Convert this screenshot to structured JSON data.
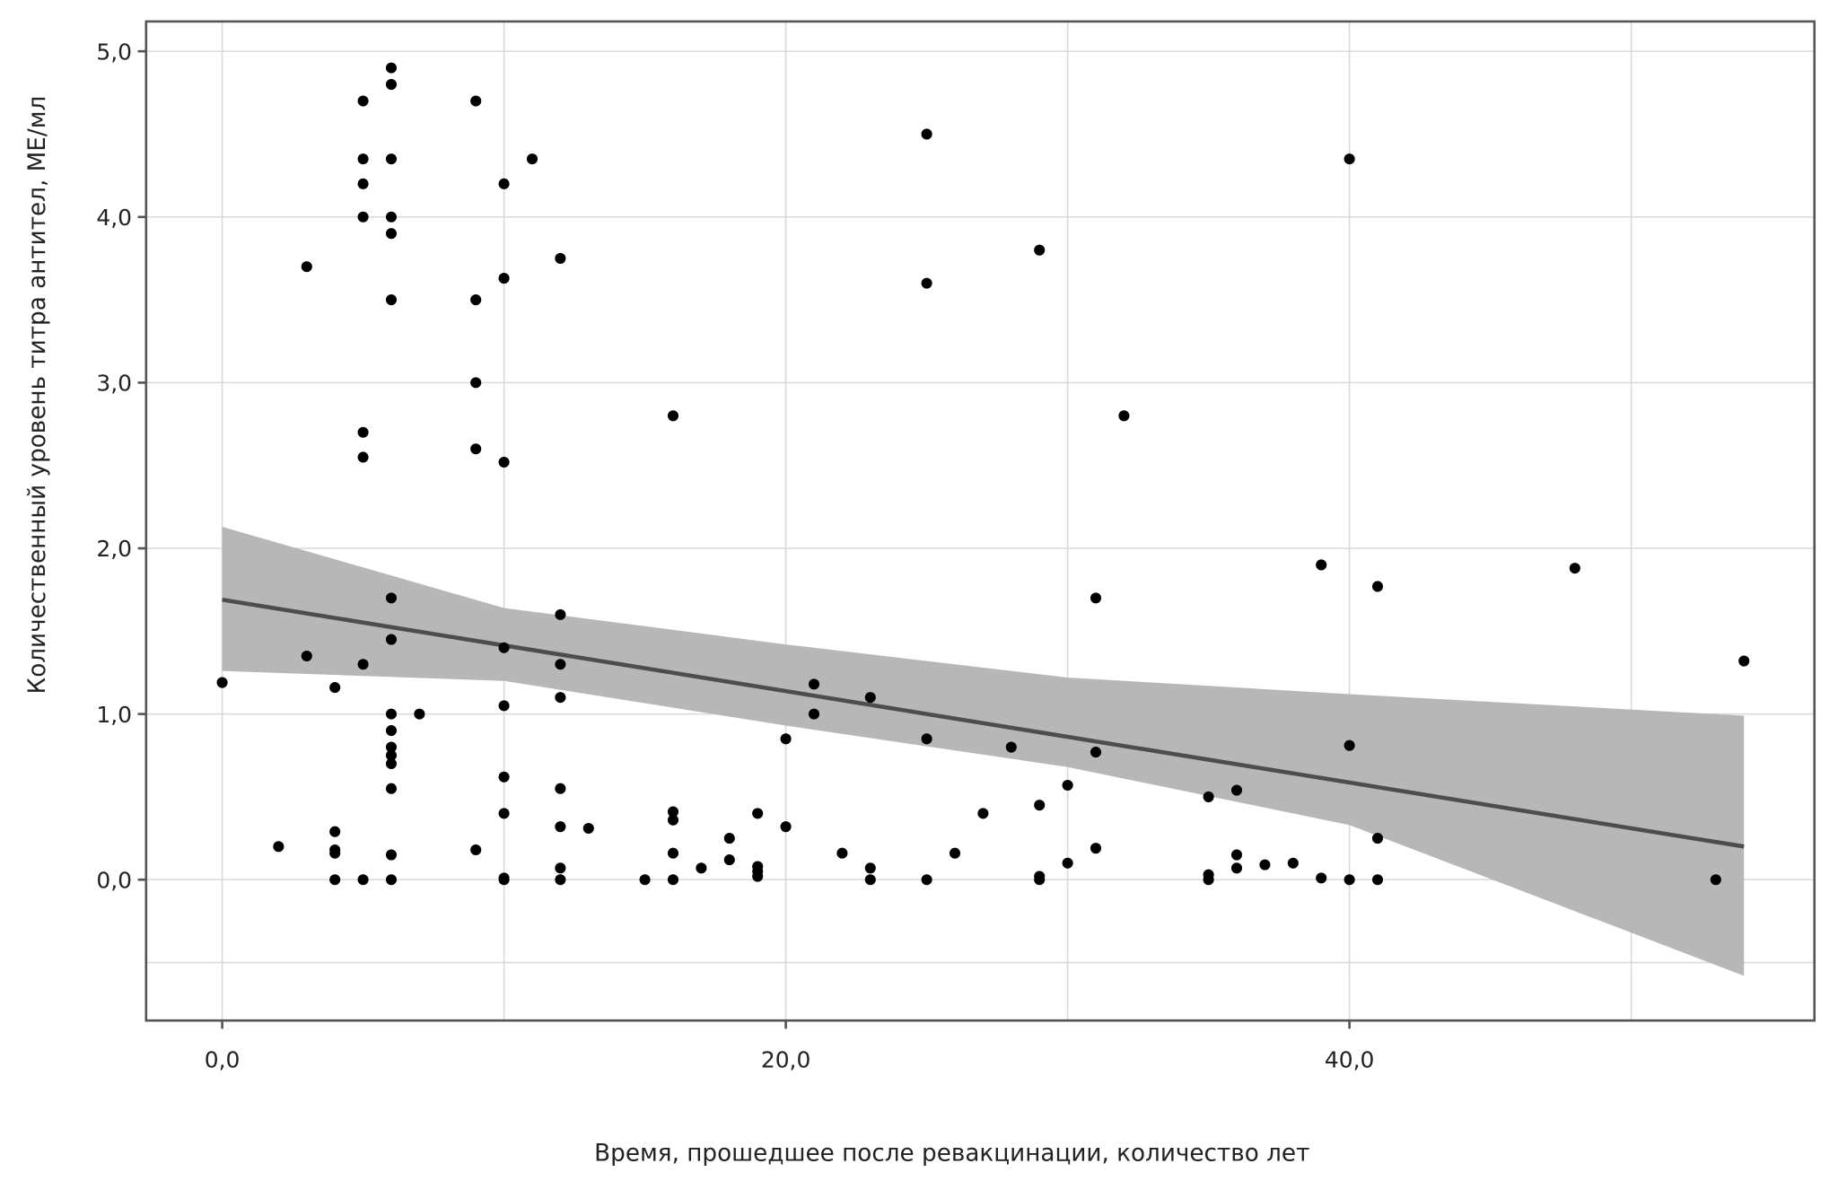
{
  "chart_data": {
    "type": "scatter",
    "title": "",
    "xlabel": "Время, прошедшее после ревакцинации, количество лет",
    "ylabel": "Количественный уровень титра антител, МЕ/мл",
    "xlim": [
      -2.7,
      56.5
    ],
    "ylim": [
      -0.85,
      5.18
    ],
    "x_ticks": [
      0,
      20,
      40
    ],
    "x_tick_labels": [
      "0,0",
      "20,0",
      "40,0"
    ],
    "y_ticks": [
      0,
      1,
      2,
      3,
      4,
      5
    ],
    "y_tick_labels": [
      "0,0",
      "1,0",
      "2,0",
      "3,0",
      "4,0",
      "5,0"
    ],
    "x_grid": [
      0,
      10,
      20,
      30,
      40,
      50
    ],
    "y_grid": [
      -0.5,
      0,
      1,
      2,
      3,
      4,
      5
    ],
    "grid": true,
    "points": [
      [
        0,
        1.19
      ],
      [
        2,
        0.2
      ],
      [
        3,
        3.7
      ],
      [
        3,
        1.35
      ],
      [
        4,
        1.16
      ],
      [
        4,
        0.29
      ],
      [
        4,
        0.18
      ],
      [
        4,
        0.16
      ],
      [
        4,
        0
      ],
      [
        5,
        4.7
      ],
      [
        5,
        4.35
      ],
      [
        5,
        4.2
      ],
      [
        5,
        4.0
      ],
      [
        5,
        2.7
      ],
      [
        5,
        2.55
      ],
      [
        5,
        1.3
      ],
      [
        5,
        0
      ],
      [
        6,
        4.9
      ],
      [
        6,
        4.8
      ],
      [
        6,
        4.35
      ],
      [
        6,
        4.0
      ],
      [
        6,
        3.9
      ],
      [
        6,
        3.5
      ],
      [
        6,
        1.7
      ],
      [
        6,
        1.45
      ],
      [
        6,
        1.0
      ],
      [
        6,
        0.9
      ],
      [
        6,
        0.8
      ],
      [
        6,
        0.75
      ],
      [
        6,
        0.7
      ],
      [
        6,
        0.55
      ],
      [
        6,
        0.15
      ],
      [
        6,
        0
      ],
      [
        7,
        1.0
      ],
      [
        9,
        4.7
      ],
      [
        9,
        3.5
      ],
      [
        9,
        3.0
      ],
      [
        9,
        2.6
      ],
      [
        9,
        0.18
      ],
      [
        10,
        4.2
      ],
      [
        10,
        3.63
      ],
      [
        10,
        2.52
      ],
      [
        10,
        1.4
      ],
      [
        10,
        1.05
      ],
      [
        10,
        0.62
      ],
      [
        10,
        0.4
      ],
      [
        10,
        0.01
      ],
      [
        10,
        0
      ],
      [
        11,
        4.35
      ],
      [
        12,
        3.75
      ],
      [
        12,
        1.6
      ],
      [
        12,
        1.3
      ],
      [
        12,
        1.1
      ],
      [
        12,
        0.55
      ],
      [
        12,
        0.32
      ],
      [
        12,
        0.07
      ],
      [
        12,
        0
      ],
      [
        13,
        0.31
      ],
      [
        15,
        0
      ],
      [
        16,
        2.8
      ],
      [
        16,
        0.41
      ],
      [
        16,
        0.36
      ],
      [
        16,
        0.16
      ],
      [
        16,
        0
      ],
      [
        17,
        0.07
      ],
      [
        18,
        0.25
      ],
      [
        18,
        0.12
      ],
      [
        19,
        0.4
      ],
      [
        19,
        0.08
      ],
      [
        19,
        0.05
      ],
      [
        19,
        0.02
      ],
      [
        20,
        0.85
      ],
      [
        20,
        0.32
      ],
      [
        21,
        1.18
      ],
      [
        21,
        1.0
      ],
      [
        22,
        0.16
      ],
      [
        23,
        1.1
      ],
      [
        23,
        0.07
      ],
      [
        23,
        0
      ],
      [
        25,
        4.5
      ],
      [
        25,
        3.6
      ],
      [
        25,
        0.85
      ],
      [
        25,
        0
      ],
      [
        26,
        0.16
      ],
      [
        27,
        0.4
      ],
      [
        28,
        0.8
      ],
      [
        29,
        3.8
      ],
      [
        29,
        0.45
      ],
      [
        29,
        0.02
      ],
      [
        29,
        0
      ],
      [
        30,
        0.57
      ],
      [
        30,
        0.1
      ],
      [
        31,
        1.7
      ],
      [
        31,
        0.77
      ],
      [
        31,
        0.19
      ],
      [
        32,
        2.8
      ],
      [
        35,
        0.5
      ],
      [
        35,
        0.03
      ],
      [
        35,
        0
      ],
      [
        36,
        0.54
      ],
      [
        36,
        0.15
      ],
      [
        36,
        0.07
      ],
      [
        37,
        0.09
      ],
      [
        38,
        0.1
      ],
      [
        39,
        1.9
      ],
      [
        39,
        0.01
      ],
      [
        40,
        4.35
      ],
      [
        40,
        0.81
      ],
      [
        40,
        0
      ],
      [
        41,
        1.77
      ],
      [
        41,
        0.25
      ],
      [
        41,
        0
      ],
      [
        48,
        1.88
      ],
      [
        53,
        0
      ],
      [
        54,
        1.32
      ]
    ],
    "regression": {
      "x": [
        0,
        54
      ],
      "y": [
        1.69,
        0.2
      ]
    },
    "confidence_band": {
      "x": [
        0,
        10,
        20,
        30,
        40,
        54
      ],
      "upper": [
        2.13,
        1.64,
        1.42,
        1.22,
        1.12,
        0.99
      ],
      "lower": [
        1.26,
        1.2,
        0.93,
        0.68,
        0.33,
        -0.58
      ]
    },
    "colors": {
      "points": "#000000",
      "line": "#4d4d4d",
      "band": "#b3b3b3",
      "grid": "#d9d9d9",
      "axis": "#555555"
    }
  }
}
